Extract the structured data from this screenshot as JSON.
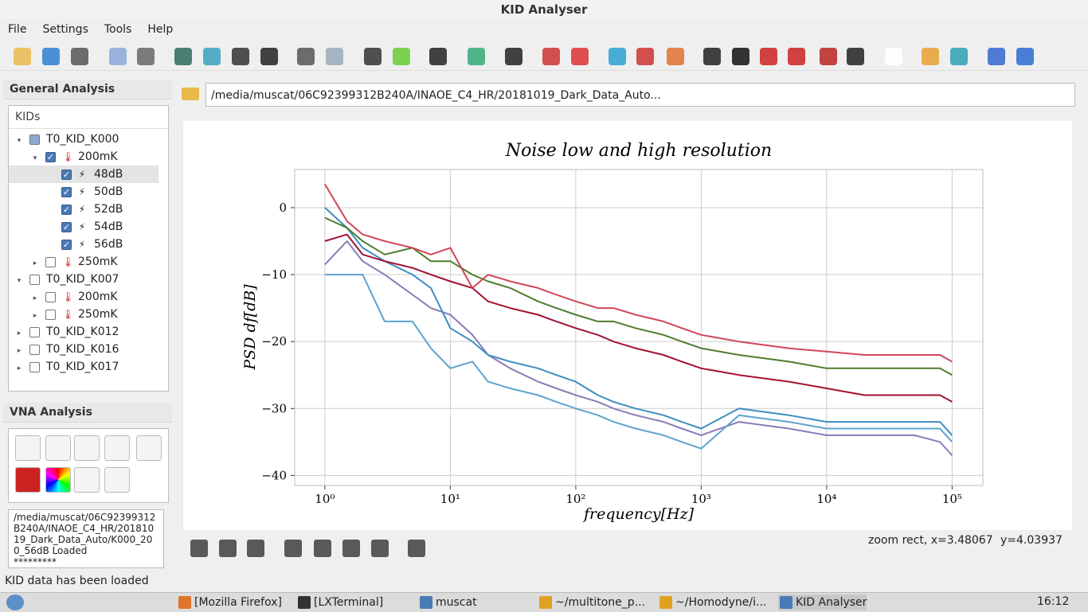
{
  "window_title": "KID Analyser",
  "menu": [
    "File",
    "Settings",
    "Tools",
    "Help"
  ],
  "general_panel": {
    "title": "General Analysis",
    "tree_header": "KIDs",
    "tree": [
      {
        "label": "T0_KID_K000",
        "level": 0,
        "expanded": true,
        "check": "partial"
      },
      {
        "label": "200mK",
        "level": 1,
        "expanded": true,
        "check": "on",
        "icon": "temp"
      },
      {
        "label": "48dB",
        "level": 2,
        "check": "on",
        "icon": "power",
        "selected": true
      },
      {
        "label": "50dB",
        "level": 2,
        "check": "on",
        "icon": "power"
      },
      {
        "label": "52dB",
        "level": 2,
        "check": "on",
        "icon": "power"
      },
      {
        "label": "54dB",
        "level": 2,
        "check": "on",
        "icon": "power"
      },
      {
        "label": "56dB",
        "level": 2,
        "check": "on",
        "icon": "power"
      },
      {
        "label": "250mK",
        "level": 1,
        "expanded": false,
        "check": "off",
        "icon": "temp"
      },
      {
        "label": "T0_KID_K007",
        "level": 0,
        "expanded": true,
        "check": "off"
      },
      {
        "label": "200mK",
        "level": 1,
        "expanded": false,
        "check": "off",
        "icon": "temp"
      },
      {
        "label": "250mK",
        "level": 1,
        "expanded": false,
        "check": "off",
        "icon": "temp"
      },
      {
        "label": "T0_KID_K012",
        "level": 0,
        "expanded": false,
        "check": "off"
      },
      {
        "label": "T0_KID_K016",
        "level": 0,
        "expanded": false,
        "check": "off"
      },
      {
        "label": "T0_KID_K017",
        "level": 0,
        "expanded": false,
        "check": "off"
      }
    ]
  },
  "vna_panel": {
    "title": "VNA Analysis"
  },
  "log_lines": [
    "/media/muscat/06C92399312",
    "B240A/INAOE_C4_HR/201810",
    "19_Dark_Data_Auto/K000_20",
    "0_56dB Loaded",
    "*********"
  ],
  "path": "/media/muscat/06C92399312B240A/INAOE_C4_HR/20181019_Dark_Data_Auto...",
  "plot_status": {
    "mode": "zoom rect, x=3.48067",
    "y": "y=4.03937"
  },
  "status_bar": "KID data has been loaded",
  "taskbar": {
    "items": [
      "[Mozilla Firefox]",
      "[LXTerminal]",
      "muscat",
      "~/multitone_p...",
      "~/Homodyne/i...",
      "KID Analyser"
    ],
    "clock": "16:12"
  },
  "chart_data": {
    "type": "line",
    "title": "Noise low and high resolution",
    "x_label": "frequency[Hz]",
    "y_label": "PSD df[dB]",
    "log_x": true,
    "grid": true,
    "xlim": [
      0.575,
      175800
    ],
    "ylim": [
      -41.5,
      5.7
    ],
    "xticks": [
      {
        "value": 1,
        "label": "10⁰"
      },
      {
        "value": 10,
        "label": "10¹"
      },
      {
        "value": 100,
        "label": "10²"
      },
      {
        "value": 1000,
        "label": "10³"
      },
      {
        "value": 10000,
        "label": "10⁴"
      },
      {
        "value": 100000,
        "label": "10⁵"
      }
    ],
    "yticks": [
      0,
      {
        "value": -10,
        "label": "−10"
      },
      {
        "value": -20,
        "label": "−20"
      },
      {
        "value": -30,
        "label": "−30"
      },
      {
        "value": -40,
        "label": "−40"
      }
    ],
    "x": [
      1,
      1.5,
      2,
      3,
      5,
      7,
      10,
      15,
      20,
      30,
      50,
      70,
      100,
      150,
      200,
      300,
      500,
      700,
      1000,
      2000,
      5000,
      10000,
      20000,
      50000,
      80000,
      100000
    ],
    "series": [
      {
        "color": "#8b7cb8",
        "values": [
          -8.5,
          -5,
          -8,
          -10,
          -13,
          -15,
          -16,
          -19,
          -22,
          -24,
          -26,
          -27,
          -28,
          -29,
          -30,
          -31,
          -32,
          -33,
          -34,
          -32,
          -33,
          -34,
          -34,
          -34,
          -35,
          -37
        ]
      },
      {
        "color": "#5ea3cf",
        "values": [
          -10,
          -10,
          -10,
          -17,
          -17,
          -21,
          -24,
          -23,
          -26,
          -27,
          -28,
          -29,
          -30,
          -31,
          -32,
          -33,
          -34,
          -35,
          -36,
          -31,
          -32,
          -33,
          -33,
          -33,
          -33,
          -35
        ]
      },
      {
        "color": "#3d8ec2",
        "values": [
          0,
          -3,
          -6,
          -8,
          -10,
          -12,
          -18,
          -20,
          -22,
          -23,
          -24,
          -25,
          -26,
          -28,
          -29,
          -30,
          -31,
          -32,
          -33,
          -30,
          -31,
          -32,
          -32,
          -32,
          -32,
          -34
        ]
      },
      {
        "color": "#a31231",
        "values": [
          -5,
          -4,
          -7,
          -8,
          -9,
          -10,
          -11,
          -12,
          -14,
          -15,
          -16,
          -17,
          -18,
          -19,
          -20,
          -21,
          -22,
          -23,
          -24,
          -25,
          -26,
          -27,
          -28,
          -28,
          -28,
          -29
        ]
      },
      {
        "color": "#4e7d2e",
        "values": [
          -1.5,
          -3,
          -5,
          -7,
          -6,
          -8,
          -8,
          -10,
          -11,
          -12,
          -14,
          -15,
          -16,
          -17,
          -17,
          -18,
          -19,
          -20,
          -21,
          -22,
          -23,
          -24,
          -24,
          -24,
          -24,
          -25
        ]
      },
      {
        "color": "#d0475a",
        "values": [
          3.5,
          -2,
          -4,
          -5,
          -6,
          -7,
          -6,
          -12,
          -10,
          -11,
          -12,
          -13,
          -14,
          -15,
          -15,
          -16,
          -17,
          -18,
          -19,
          -20,
          -21,
          -21.5,
          -22,
          -22,
          -22,
          -23
        ]
      }
    ]
  }
}
